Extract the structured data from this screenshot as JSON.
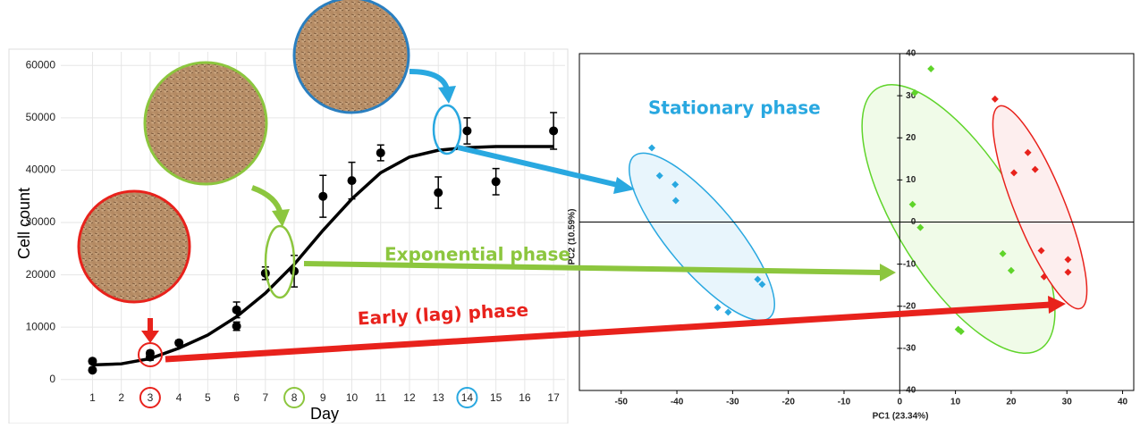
{
  "chart_data": [
    {
      "type": "errorbar",
      "y_label": "Cell count",
      "x_label": "Day",
      "xlim": [
        -0.1,
        17.4
      ],
      "xticks": [
        1,
        2,
        3,
        4,
        5,
        6,
        7,
        8,
        9,
        10,
        11,
        12,
        13,
        14,
        15,
        16,
        17
      ],
      "ylim": [
        -2600,
        62600
      ],
      "yticks": [
        0,
        10000,
        20000,
        30000,
        40000,
        50000,
        60000
      ],
      "grid": true,
      "highlighted_xticks": [
        3,
        8,
        14
      ],
      "highlight_colors": [
        "#e8221c",
        "#8cc63e",
        "#29a8e0"
      ],
      "points": {
        "x": [
          1,
          1,
          3,
          3,
          4,
          6,
          6,
          7,
          8,
          9,
          10,
          11,
          13,
          14,
          15,
          17
        ],
        "values": [
          3500,
          1800,
          4300,
          5000,
          7000,
          13300,
          10200,
          20300,
          20700,
          35000,
          38000,
          43300,
          35700,
          47500,
          37800,
          47500
        ],
        "errors": [
          500,
          400,
          600,
          500,
          500,
          1500,
          800,
          1200,
          3000,
          4000,
          3500,
          1500,
          3000,
          2500,
          2500,
          3500
        ],
        "color": "#000000"
      },
      "curve": {
        "x": [
          1,
          2,
          3,
          4,
          5,
          6,
          7,
          8,
          9,
          10,
          11,
          12,
          13,
          14,
          15,
          16,
          17
        ],
        "values": [
          2800,
          3000,
          4000,
          6000,
          8500,
          12000,
          16500,
          22000,
          28500,
          34500,
          39500,
          42500,
          43800,
          44300,
          44500,
          44500,
          44500
        ],
        "color": "#000000"
      }
    },
    {
      "type": "scatter",
      "x_label": "PC1 (23.34%)",
      "y_label": "PC2 (10.59%)",
      "xlim": [
        -57.5,
        42
      ],
      "xticks": [
        -50,
        -40,
        -30,
        -20,
        -10,
        0,
        10,
        20,
        30,
        40
      ],
      "ylim": [
        -40,
        40
      ],
      "yticks": [
        -40,
        -30,
        -20,
        -10,
        0,
        10,
        20,
        30,
        40
      ],
      "series": [
        {
          "color": "#29a8e0",
          "x": [
            -44.5,
            -43.1,
            -40.3,
            -40.2,
            -25.5,
            -24.7,
            -32.7,
            -30.8
          ],
          "values": [
            17.6,
            11,
            8.9,
            5.1,
            -13.6,
            -14.8,
            -20.3,
            -21.4
          ]
        },
        {
          "color": "#5fd42a",
          "x": [
            5.6,
            2.7,
            2.3,
            3.7,
            18.5,
            20,
            10.5,
            11
          ],
          "values": [
            36.4,
            30.7,
            4.2,
            -1.3,
            -7.5,
            -11.5,
            -25.5,
            -26
          ]
        },
        {
          "color": "#e8221c",
          "x": [
            17.1,
            23,
            24.3,
            20.5,
            25.4,
            25.9,
            30.2,
            30.2
          ],
          "values": [
            29.2,
            16.5,
            12.5,
            11.7,
            -6.8,
            -13,
            -8.9,
            -11.9
          ]
        }
      ]
    }
  ],
  "annotations": [
    {
      "text": "Stationary phase",
      "color": "#29a8e0"
    },
    {
      "text": "Exponential phase",
      "color": "#8cc63e"
    },
    {
      "text": "Early (lag) phase",
      "color": "#e8221c"
    }
  ]
}
